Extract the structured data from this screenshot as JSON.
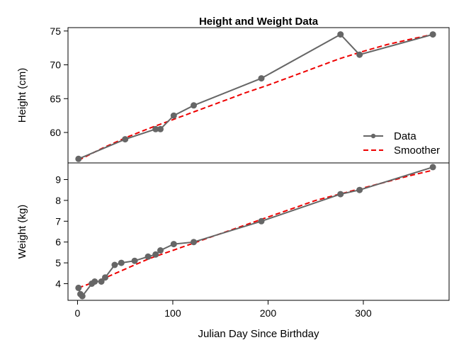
{
  "chart_data": {
    "type": "line",
    "title": "Height and Weight Data",
    "xlabel": "Julian Day Since Birthday",
    "xlim": [
      -10,
      390
    ],
    "xticks": [
      0,
      100,
      200,
      300
    ],
    "legend": {
      "placement": "bottom-right of top panel",
      "entries": [
        {
          "label": "Data",
          "color": "#666666",
          "style": "solid line with points"
        },
        {
          "label": "Smoother",
          "color": "#ee0000",
          "style": "dashed line"
        }
      ]
    },
    "panels": [
      {
        "ylabel": "Height (cm)",
        "ylim": [
          55.5,
          75.5
        ],
        "yticks": [
          60,
          65,
          70,
          75
        ],
        "series": [
          {
            "name": "Data",
            "x": [
              1,
              50,
              82,
              87,
              101,
              122,
              193,
              276,
              296,
              373
            ],
            "y": [
              56.1,
              59.0,
              60.5,
              60.5,
              62.5,
              64.0,
              68.0,
              74.5,
              71.5,
              74.5
            ]
          },
          {
            "name": "Smoother",
            "x": [
              1,
              25,
              50,
              75,
              100,
              125,
              150,
              175,
              200,
              225,
              250,
              275,
              300,
              325,
              350,
              373
            ],
            "y": [
              55.9,
              57.6,
              59.2,
              60.6,
              61.9,
              63.2,
              64.5,
              65.8,
              67.0,
              68.3,
              69.6,
              70.9,
              72.0,
              73.0,
              73.8,
              74.5
            ]
          }
        ]
      },
      {
        "ylabel": "Weight (kg)",
        "ylim": [
          3.2,
          9.8
        ],
        "yticks": [
          4,
          5,
          6,
          7,
          8,
          9
        ],
        "series": [
          {
            "name": "Data",
            "x": [
              1,
              3,
              5,
              15,
              18,
              25,
              29,
              39,
              46,
              60,
              74,
              82,
              87,
              101,
              122,
              193,
              276,
              296,
              373
            ],
            "y": [
              3.8,
              3.5,
              3.4,
              4.0,
              4.1,
              4.1,
              4.3,
              4.9,
              5.0,
              5.1,
              5.3,
              5.4,
              5.6,
              5.9,
              6.0,
              7.0,
              8.3,
              8.5,
              9.6
            ]
          },
          {
            "name": "Smoother",
            "x": [
              1,
              25,
              50,
              75,
              100,
              125,
              150,
              175,
              200,
              225,
              250,
              275,
              300,
              325,
              350,
              373
            ],
            "y": [
              3.8,
              4.2,
              4.7,
              5.2,
              5.6,
              6.0,
              6.4,
              6.8,
              7.2,
              7.6,
              8.0,
              8.3,
              8.6,
              8.9,
              9.2,
              9.45
            ]
          }
        ]
      }
    ]
  }
}
